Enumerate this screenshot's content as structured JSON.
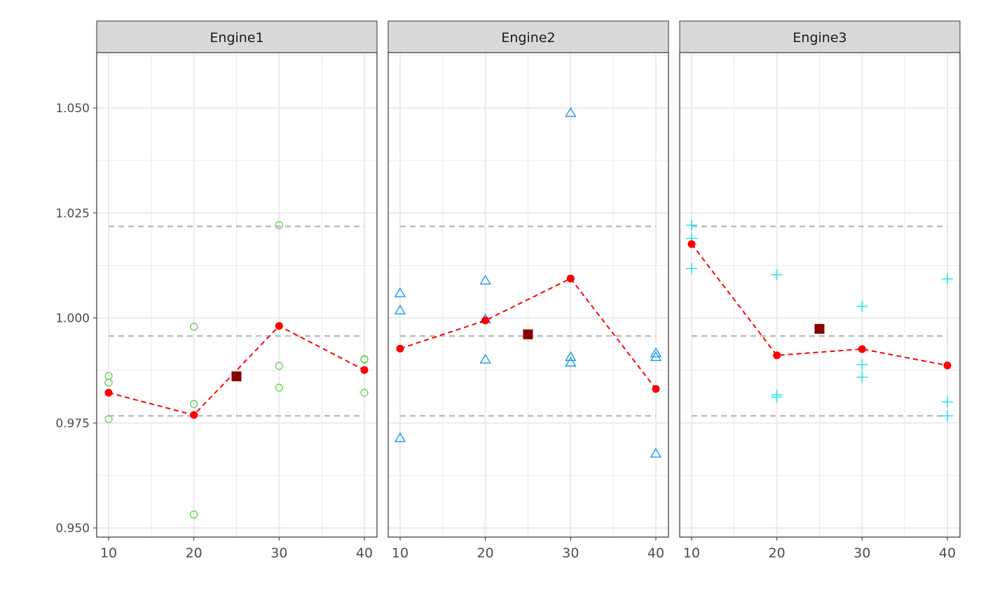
{
  "chart_data": {
    "type": "scatter",
    "title": "",
    "xlabel": "",
    "ylabel": "",
    "xlim": [
      9.3,
      41.5
    ],
    "ylim": [
      0.948,
      1.0635
    ],
    "x_ticks": [
      10,
      20,
      30,
      40
    ],
    "y_ticks": [
      0.95,
      0.975,
      1.0,
      1.025,
      1.05
    ],
    "y_tick_labels": [
      "0.950",
      "0.975",
      "1.000",
      "1.025",
      "1.050"
    ],
    "x_tick_labels": [
      "10",
      "20",
      "30",
      "40"
    ],
    "grid": true,
    "reference_lines": [
      1.0218,
      0.9957,
      0.9767
    ],
    "colors": {
      "mean": "#ff0000",
      "center": "#8b0000",
      "reference": "#bebebe"
    },
    "panels": [
      {
        "name": "Engine1",
        "marker": "circle",
        "color": "#61d04f",
        "points": [
          [
            10,
            0.9862
          ],
          [
            10,
            0.9846
          ],
          [
            10,
            0.9759
          ],
          [
            20,
            0.9979
          ],
          [
            20,
            0.9795
          ],
          [
            20,
            0.9532
          ],
          [
            30,
            1.0221
          ],
          [
            30,
            0.9886
          ],
          [
            30,
            0.9834
          ],
          [
            40,
            0.9902
          ],
          [
            40,
            0.9901
          ],
          [
            40,
            0.9822
          ]
        ],
        "means": [
          [
            10,
            0.9822
          ],
          [
            20,
            0.9769
          ],
          [
            30,
            0.9981
          ],
          [
            40,
            0.9876
          ]
        ],
        "center": [
          25,
          0.9861
        ]
      },
      {
        "name": "Engine2",
        "marker": "triangle",
        "color": "#2297e6",
        "points": [
          [
            10,
            1.0059
          ],
          [
            10,
            1.0018
          ],
          [
            10,
            0.9714
          ],
          [
            20,
            1.0089
          ],
          [
            20,
            0.9997
          ],
          [
            20,
            0.9901
          ],
          [
            30,
            1.0488
          ],
          [
            30,
            0.9907
          ],
          [
            30,
            0.9894
          ],
          [
            40,
            0.9916
          ],
          [
            40,
            0.9907
          ],
          [
            40,
            0.9677
          ]
        ],
        "means": [
          [
            10,
            0.9927
          ],
          [
            20,
            0.9994
          ],
          [
            30,
            1.0094
          ],
          [
            40,
            0.9831
          ]
        ],
        "center": [
          25,
          0.9961
        ]
      },
      {
        "name": "Engine3",
        "marker": "plus",
        "color": "#28e2e5",
        "points": [
          [
            10,
            1.0221
          ],
          [
            10,
            1.0189
          ],
          [
            10,
            1.0118
          ],
          [
            20,
            1.0103
          ],
          [
            20,
            0.9817
          ],
          [
            20,
            0.9812
          ],
          [
            30,
            1.0028
          ],
          [
            30,
            0.9889
          ],
          [
            30,
            0.9859
          ],
          [
            40,
            1.0093
          ],
          [
            40,
            0.98
          ],
          [
            40,
            0.9767
          ]
        ],
        "means": [
          [
            10,
            1.0176
          ],
          [
            20,
            0.9911
          ],
          [
            30,
            0.9926
          ],
          [
            40,
            0.9887
          ]
        ],
        "center": [
          25,
          0.9974
        ]
      }
    ]
  }
}
